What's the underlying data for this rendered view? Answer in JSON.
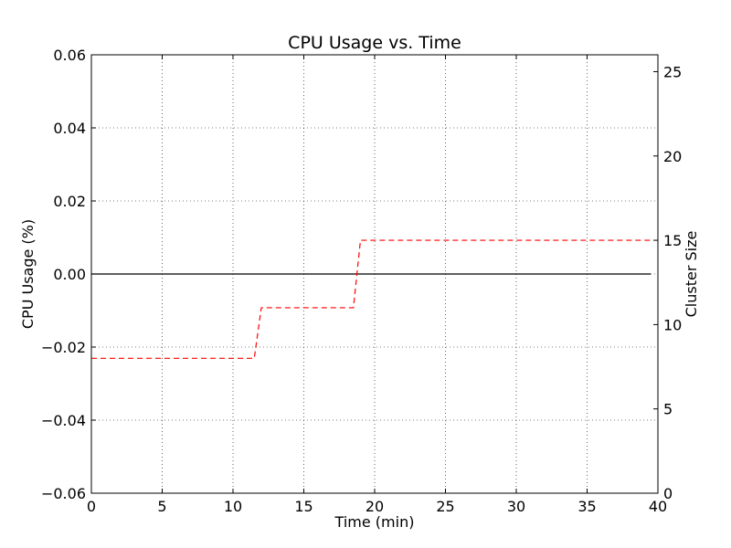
{
  "chart_data": {
    "type": "line",
    "title": "CPU Usage vs. Time",
    "xlabel": "Time (min)",
    "ylabel": "CPU Usage (%)",
    "y2label": "Cluster Size",
    "xlim": [
      0,
      40
    ],
    "ylim": [
      -0.06,
      0.06
    ],
    "y2lim": [
      0,
      26
    ],
    "x_ticks": [
      0,
      5,
      10,
      15,
      20,
      25,
      30,
      35,
      40
    ],
    "x_tick_labels": [
      "0",
      "5",
      "10",
      "15",
      "20",
      "25",
      "30",
      "35",
      "40"
    ],
    "y_ticks": [
      -0.06,
      -0.04,
      -0.02,
      0.0,
      0.02,
      0.04,
      0.06
    ],
    "y_tick_labels": [
      "−0.06",
      "−0.04",
      "−0.02",
      "0.00",
      "0.02",
      "0.04",
      "0.06"
    ],
    "y2_ticks": [
      0,
      5,
      10,
      15,
      20,
      25
    ],
    "y2_tick_labels": [
      "0",
      "5",
      "10",
      "15",
      "20",
      "25"
    ],
    "grid": true,
    "series": [
      {
        "axis": "left",
        "color": "#000000",
        "style": "solid",
        "x": [
          0,
          39.5
        ],
        "y": [
          0.0,
          0.0
        ]
      },
      {
        "axis": "right",
        "color": "#ff0000",
        "style": "dashed",
        "x": [
          0,
          11.5,
          12,
          18.5,
          19,
          39.5
        ],
        "y": [
          8,
          8,
          11,
          11,
          15,
          15
        ]
      }
    ]
  }
}
